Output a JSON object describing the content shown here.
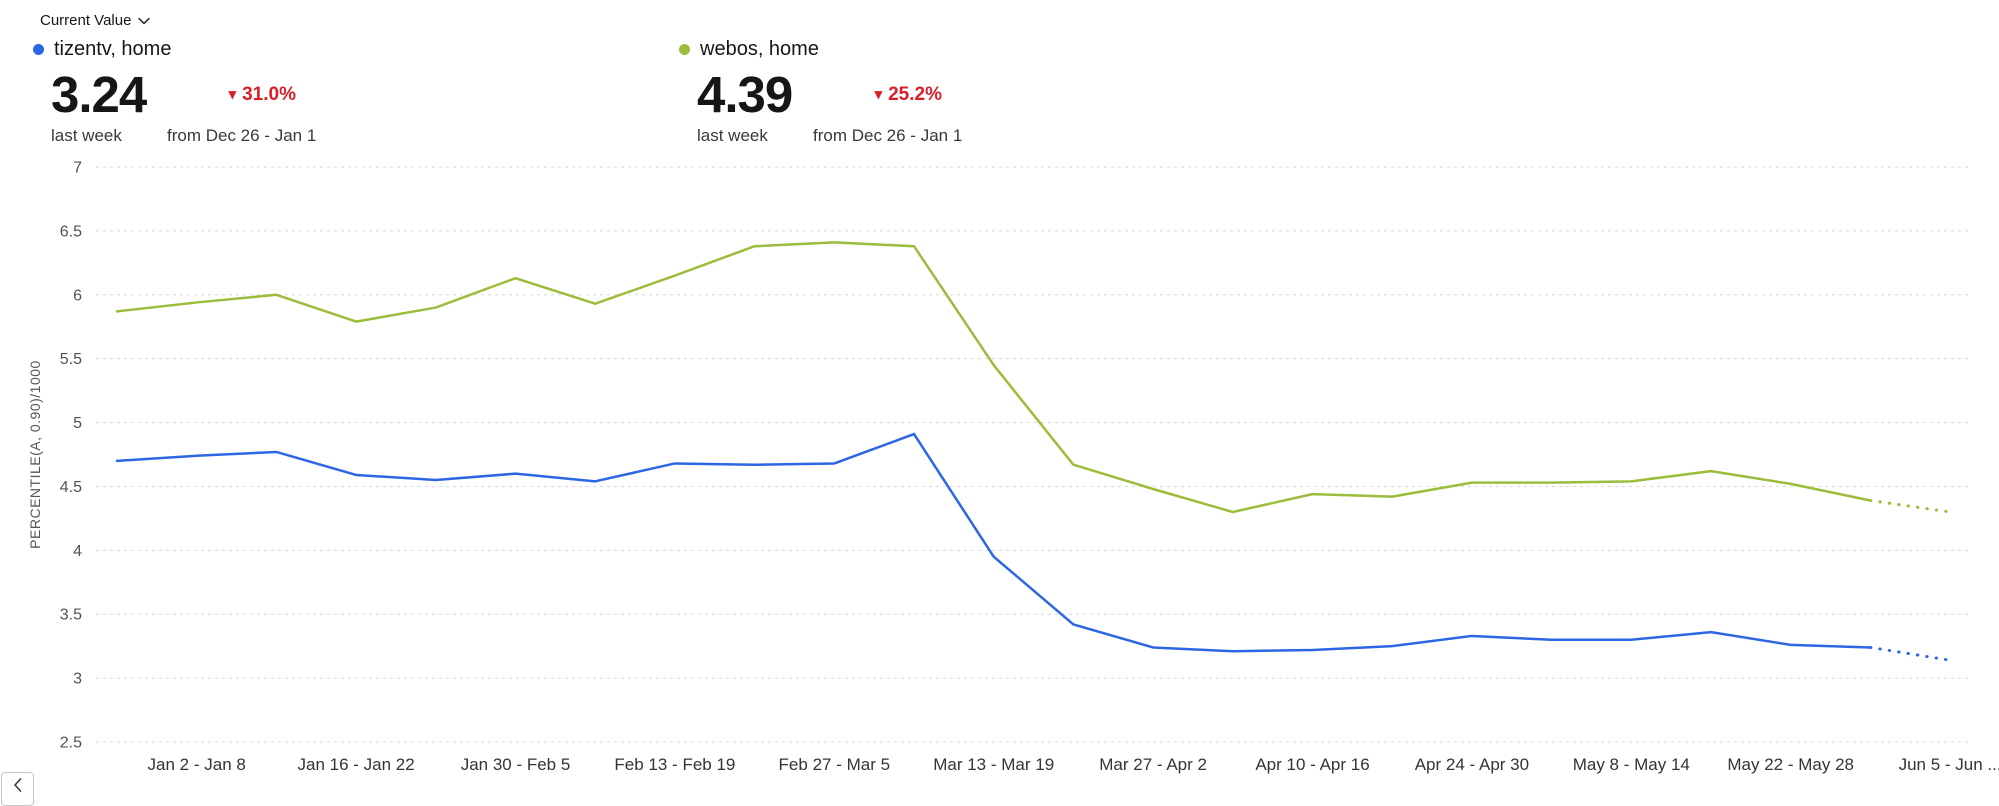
{
  "header": {
    "metric_dropdown": {
      "label": "Current Value"
    }
  },
  "cards": [
    {
      "legend": "tizentv, home",
      "color": "#2d66e4",
      "value": "3.24",
      "value_caption": "last week",
      "change": "31.0%",
      "change_direction": "down",
      "change_color": "#da1e28",
      "change_caption": "from Dec 26 - Jan 1"
    },
    {
      "legend": "webos, home",
      "color": "#9bbd3b",
      "value": "4.39",
      "value_caption": "last week",
      "change": "25.2%",
      "change_direction": "down",
      "change_color": "#da1e28",
      "change_caption": "from Dec 26 - Jan 1"
    }
  ],
  "icons": {
    "down_triangle": "▾",
    "chevron_left": "‹"
  },
  "chart_data": {
    "type": "line",
    "title": "",
    "xlabel": "",
    "ylabel": "PERCENTILE(A, 0.90)/1000",
    "ylim": [
      2.5,
      7
    ],
    "yticks": [
      7,
      6.5,
      6,
      5.5,
      5,
      4.5,
      4,
      3.5,
      3,
      2.5
    ],
    "grid": "dashed-horizontal",
    "legend_position": "top-cards",
    "num_points": 24,
    "solid_until_index": 22,
    "dotted_tail": true,
    "xtick_indices": [
      1,
      3,
      5,
      7,
      9,
      11,
      13,
      15,
      17,
      19,
      21,
      23
    ],
    "xtick_labels": [
      "Jan 2 - Jan 8",
      "Jan 16 - Jan 22",
      "Jan 30 - Feb 5",
      "Feb 13 - Feb 19",
      "Feb 27 - Mar 5",
      "Mar 13 - Mar 19",
      "Mar 27 - Apr 2",
      "Apr 10 - Apr 16",
      "Apr 24 - Apr 30",
      "May 8 - May 14",
      "May 22 - May 28",
      "Jun 5 - Jun ..."
    ],
    "series": [
      {
        "name": "tizentv, home",
        "color": "#2d66e4",
        "values": [
          4.7,
          4.74,
          4.77,
          4.59,
          4.55,
          4.6,
          4.54,
          4.68,
          4.67,
          4.68,
          4.91,
          3.95,
          3.42,
          3.24,
          3.21,
          3.22,
          3.25,
          3.33,
          3.3,
          3.3,
          3.36,
          3.26,
          3.24,
          3.14
        ]
      },
      {
        "name": "webos, home",
        "color": "#9bbd3b",
        "values": [
          5.87,
          5.94,
          6.0,
          5.79,
          5.9,
          6.13,
          5.93,
          6.15,
          6.38,
          6.41,
          6.38,
          5.45,
          4.67,
          4.48,
          4.3,
          4.44,
          4.42,
          4.53,
          4.53,
          4.54,
          4.62,
          4.52,
          4.39,
          4.3
        ]
      }
    ]
  }
}
